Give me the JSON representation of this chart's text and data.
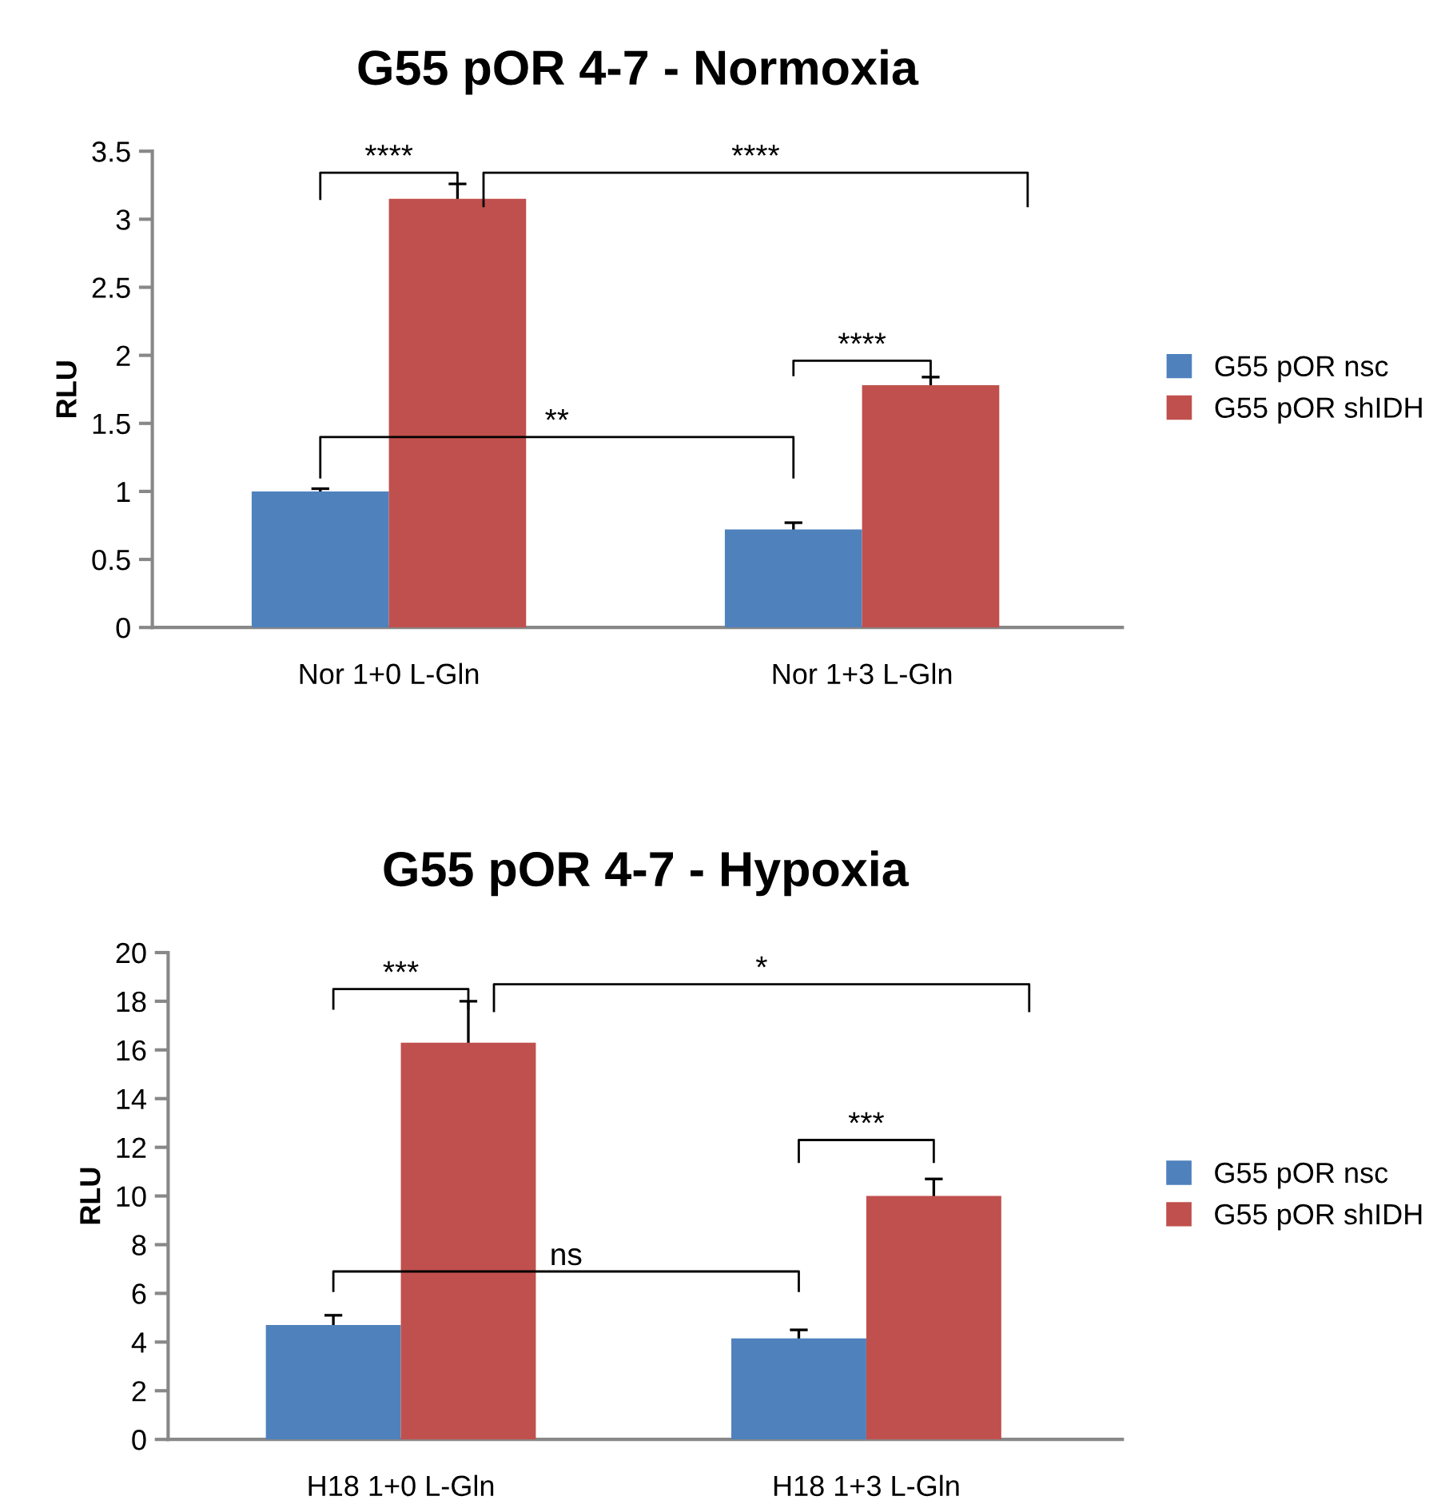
{
  "chart_data": [
    {
      "type": "bar",
      "title": "G55 pOR 4-7 - Normoxia",
      "ylabel": "RLU",
      "categories": [
        "Nor 1+0 L-Gln",
        "Nor 1+3 L-Gln"
      ],
      "series": [
        {
          "name": "G55 pOR nsc",
          "color": "#4f81bd",
          "values": [
            1.0,
            0.72
          ],
          "errors": [
            0.02,
            0.05
          ]
        },
        {
          "name": "G55 pOR shIDH",
          "color": "#c0504d",
          "values": [
            3.15,
            1.78
          ],
          "errors": [
            0.11,
            0.06
          ]
        }
      ],
      "ylim": [
        0,
        3.5
      ],
      "yticks": [
        0,
        0.5,
        1,
        1.5,
        2,
        2.5,
        3,
        3.5
      ],
      "grid": false,
      "legend": "right",
      "annotations": [
        "****",
        "****",
        "****",
        "**"
      ]
    },
    {
      "type": "bar",
      "title": "G55 pOR 4-7 - Hypoxia",
      "ylabel": "RLU",
      "categories": [
        "H18 1+0 L-Gln",
        "H18 1+3 L-Gln"
      ],
      "series": [
        {
          "name": "G55 pOR nsc",
          "color": "#4f81bd",
          "values": [
            4.7,
            4.15
          ],
          "errors": [
            0.4,
            0.35
          ]
        },
        {
          "name": "G55 pOR shIDH",
          "color": "#c0504d",
          "values": [
            16.3,
            10.0
          ],
          "errors": [
            1.7,
            0.7
          ]
        }
      ],
      "ylim": [
        0,
        20
      ],
      "yticks": [
        0,
        2,
        4,
        6,
        8,
        10,
        12,
        14,
        16,
        18,
        20
      ],
      "grid": false,
      "legend": "right",
      "annotations": [
        "***",
        "*",
        "***",
        "ns"
      ]
    }
  ]
}
